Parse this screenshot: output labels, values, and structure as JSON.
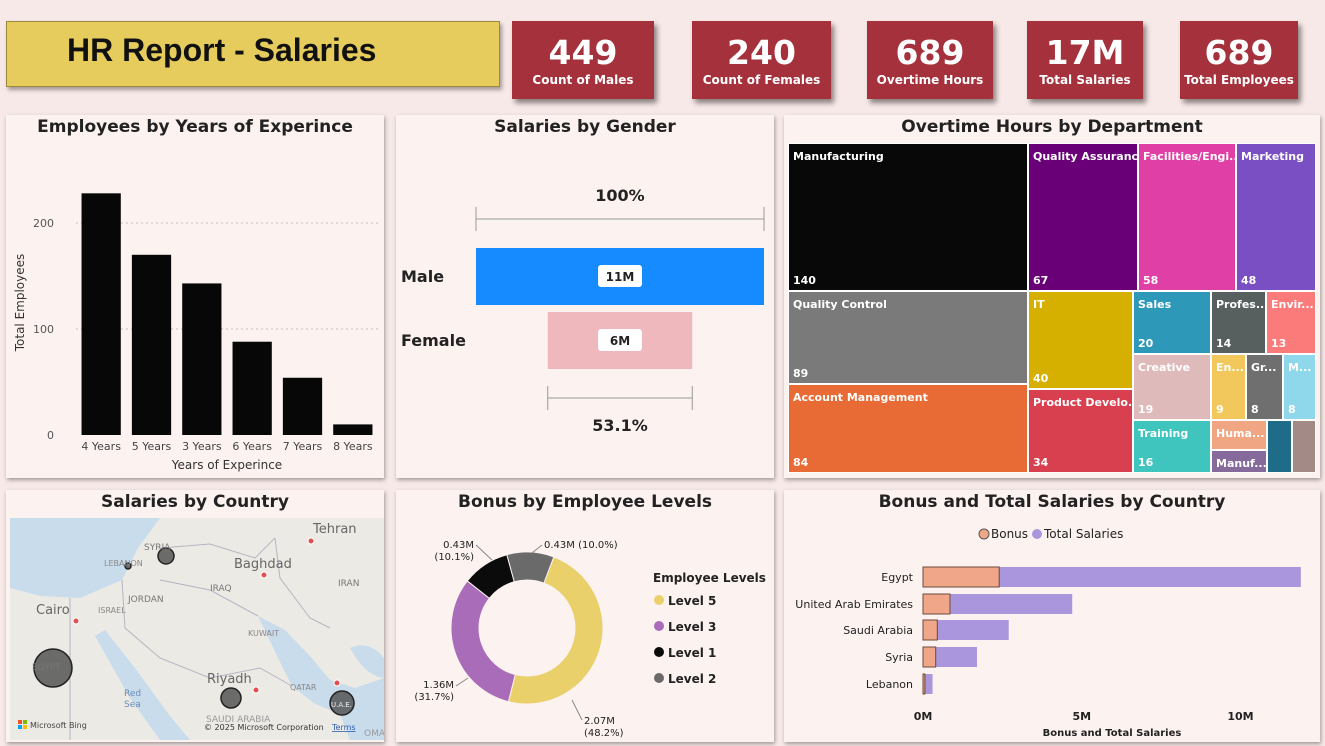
{
  "report_title": "HR Report  - Salaries",
  "kpis": [
    {
      "value": "449",
      "label": "Count of Males"
    },
    {
      "value": "240",
      "label": "Count of Females"
    },
    {
      "value": "689",
      "label": "Overtime Hours"
    },
    {
      "value": "17M",
      "label": "Total Salaries"
    },
    {
      "value": "689",
      "label": "Total Employees"
    }
  ],
  "colors": {
    "kpi_bg": "#a4313b",
    "title_bg": "#e6cc5c",
    "male": "#168bff",
    "female": "#eeb8bc",
    "bonus": "#f0a789",
    "total_salaries": "#a996dc"
  },
  "chart_data": [
    {
      "type": "bar",
      "title": "Employees by Years of Experince",
      "xlabel": "Years of Experince",
      "ylabel": "Total Employees",
      "categories": [
        "4 Years",
        "5 Years",
        "3 Years",
        "6 Years",
        "7 Years",
        "8 Years"
      ],
      "values": [
        228,
        170,
        143,
        88,
        54,
        10
      ],
      "ylim": [
        0,
        250
      ],
      "yticks": [
        0,
        100,
        200
      ],
      "grid": true
    },
    {
      "type": "funnel",
      "title": "Salaries by Gender",
      "categories": [
        "Male",
        "Female"
      ],
      "values": [
        11,
        6
      ],
      "value_labels": [
        "11M",
        "6M"
      ],
      "top_label": "100%",
      "bottom_label": "53.1%"
    },
    {
      "type": "treemap",
      "title": "Overtime Hours by Department",
      "items": [
        {
          "name": "Manufacturing",
          "value": 140,
          "color": "#080808"
        },
        {
          "name": "Quality Assurance",
          "value": 67,
          "color": "#6a0077"
        },
        {
          "name": "Facilities/Engi...",
          "value": 58,
          "color": "#e040a6"
        },
        {
          "name": "Marketing",
          "value": 48,
          "color": "#7a4fc4"
        },
        {
          "name": "Quality Control",
          "value": 89,
          "color": "#7a7a7a"
        },
        {
          "name": "IT",
          "value": 40,
          "color": "#d6b000"
        },
        {
          "name": "Sales",
          "value": 20,
          "color": "#2e98b8"
        },
        {
          "name": "Profes...",
          "value": 14,
          "color": "#58605f"
        },
        {
          "name": "Envir...",
          "value": 13,
          "color": "#fb7b7b"
        },
        {
          "name": "Account Management",
          "value": 84,
          "color": "#e86a34"
        },
        {
          "name": "Product Develo...",
          "value": 34,
          "color": "#d84050"
        },
        {
          "name": "Creative",
          "value": 19,
          "color": "#dfbabb"
        },
        {
          "name": "En...",
          "value": 9,
          "color": "#f2c85c"
        },
        {
          "name": "Gr...",
          "value": 8,
          "color": "#6f6f6f"
        },
        {
          "name": "M...",
          "value": 8,
          "color": "#8fd8ec"
        },
        {
          "name": "Training",
          "value": 16,
          "color": "#40c4be"
        },
        {
          "name": "Huma...",
          "value": null,
          "color": "#f0a682"
        },
        {
          "name": "Manuf...",
          "value": null,
          "color": "#876a9c"
        },
        {
          "name": "",
          "value": null,
          "color": "#1f6c88"
        },
        {
          "name": "",
          "value": null,
          "color": "#a38a86"
        }
      ]
    },
    {
      "type": "map",
      "title": "Salaries by Country",
      "labels": {
        "tehran": "Tehran",
        "syria": "SYRIA",
        "baghdad": "Baghdad",
        "lebanon": "LEBANON",
        "iraq": "IRAQ",
        "iran": "IRAN",
        "cairo": "Cairo",
        "jordan": "JORDAN",
        "israel": "ISRAEL",
        "kuwait": "KUWAIT",
        "egypt": "EGYPT",
        "riyadh": "Riyadh",
        "qatar": "QATAR",
        "uae": "U.A.E.",
        "red_sea": "Red",
        "red_sea2": "Sea",
        "saudi": "SAUDI ARABIA",
        "oman": "OMA",
        "bing": "Microsoft Bing",
        "copyright": "© 2025 Microsoft Corporation",
        "terms": "Terms"
      }
    },
    {
      "type": "pie",
      "title": "Bonus by Employee Levels",
      "legend_title": "Employee Levels",
      "legend_position": "right",
      "slices": [
        {
          "name": "Level 5",
          "value": 2.07,
          "pct": 48.2,
          "label": "2.07M",
          "pct_label": "(48.2%)",
          "color": "#e9d06a"
        },
        {
          "name": "Level 3",
          "value": 1.36,
          "pct": 31.7,
          "label": "1.36M",
          "pct_label": "(31.7%)",
          "color": "#a86cb8"
        },
        {
          "name": "Level 1",
          "value": 0.43,
          "pct": 10.1,
          "label": "0.43M",
          "pct_label": "(10.1%)",
          "color": "#0b0b0b"
        },
        {
          "name": "Level 2",
          "value": 0.43,
          "pct": 10.0,
          "label": "0.43M",
          "pct_label": "(10.0%)",
          "color": "#6a6a6a"
        }
      ],
      "top_right_label": "0.43M (10.0%)"
    },
    {
      "type": "bar",
      "orientation": "horizontal",
      "title": "Bonus and Total Salaries by Country",
      "xlabel": "Bonus and Total Salaries",
      "categories": [
        "Egypt",
        "United Arab Emirates",
        "Saudi Arabia",
        "Syria",
        "Lebanon"
      ],
      "series": [
        {
          "name": "Bonus",
          "values": [
            2.4,
            0.85,
            0.45,
            0.4,
            0.06
          ]
        },
        {
          "name": "Total Salaries",
          "values": [
            11.9,
            4.7,
            2.7,
            1.7,
            0.3
          ]
        }
      ],
      "xlim": [
        0,
        12
      ],
      "xticks": [
        "0M",
        "5M",
        "10M"
      ],
      "legend_position": "top"
    }
  ]
}
